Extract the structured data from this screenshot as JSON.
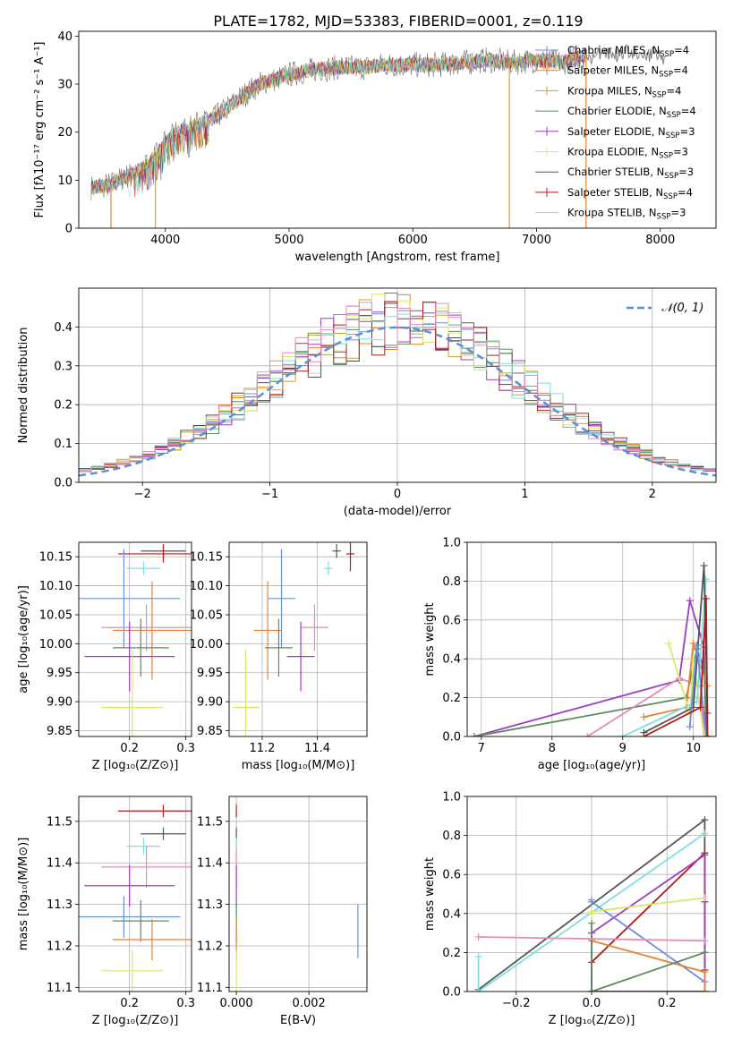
{
  "figure": {
    "title": "PLATE=1782, MJD=53383, FIBERID=0001, z=0.119"
  },
  "colors": {
    "chabrier_miles": "#6a8fe0",
    "salpeter_miles": "#e8822e",
    "kroupa_miles": "#c9a52e",
    "chabrier_elodie": "#5e8a5e",
    "salpeter_elodie": "#9a3fc4",
    "kroupa_elodie": "#d8e86a",
    "chabrier_stelib": "#555555",
    "salpeter_stelib": "#b01a1a",
    "kroupa_stelib": "#7fdde0",
    "pink": "#e68ab8",
    "normal": "#5b8fd6"
  },
  "chart_data": [
    {
      "id": "spectrum",
      "type": "line",
      "xlabel": "wavelength [Angstrom, rest frame]",
      "ylabel": "Flux [fλ10⁻¹⁷ erg cm⁻² s⁻¹ A⁻¹]",
      "xlim": [
        3300,
        8450
      ],
      "ylim": [
        0,
        41
      ],
      "xticks": [
        "4000",
        "5000",
        "6000",
        "7000",
        "8000"
      ],
      "yticks": [
        "0",
        "10",
        "20",
        "30",
        "40"
      ],
      "grid": false,
      "legend_position": "right",
      "continuum": {
        "x": [
          3400,
          3550,
          3700,
          3850,
          3950,
          4000,
          4100,
          4200,
          4300,
          4400,
          4500,
          4600,
          4700,
          4800,
          4900,
          5000,
          5200,
          5400,
          5600,
          5800,
          6000,
          6200,
          6400,
          6600,
          6800,
          7000,
          7200,
          7400
        ],
        "y": [
          8.5,
          9,
          11,
          13,
          16,
          18,
          20,
          21,
          22,
          23,
          25,
          27,
          29,
          30.5,
          31,
          32,
          33,
          33.5,
          33.5,
          34,
          34,
          34,
          34.5,
          35,
          34.5,
          35,
          34.5,
          36
        ]
      },
      "observed_tail": {
        "x": [
          7450,
          7550,
          7650,
          7750,
          7850,
          7950,
          8050
        ],
        "y": [
          35.5,
          37,
          36,
          37,
          35.5,
          36.5,
          35
        ]
      },
      "dropouts": [
        3560,
        3920,
        6780,
        7400
      ],
      "series": [
        {
          "name": "Chabrier MILES, N_SSP=4",
          "label_main": "Chabrier MILES, N",
          "label_sub": "SSP",
          "label_tail": "=4",
          "color": "#6a8fe0",
          "marker": "cross"
        },
        {
          "name": "Salpeter MILES, N_SSP=4",
          "label_main": "Salpeter MILES, N",
          "label_sub": "SSP",
          "label_tail": "=4",
          "color": "#e8822e",
          "marker": "cross"
        },
        {
          "name": "Kroupa MILES, N_SSP=4",
          "label_main": "Kroupa MILES, N",
          "label_sub": "SSP",
          "label_tail": "=4",
          "color": "#c9a52e",
          "marker": "cross"
        },
        {
          "name": "Chabrier ELODIE, N_SSP=4",
          "label_main": "Chabrier ELODIE, N",
          "label_sub": "SSP",
          "label_tail": "=4",
          "color": "#5e8a5e",
          "marker": "line"
        },
        {
          "name": "Salpeter ELODIE, N_SSP=3",
          "label_main": "Salpeter ELODIE, N",
          "label_sub": "SSP",
          "label_tail": "=3",
          "color": "#9a3fc4",
          "marker": "cross"
        },
        {
          "name": "Kroupa ELODIE, N_SSP=3",
          "label_main": "Kroupa ELODIE, N",
          "label_sub": "SSP",
          "label_tail": "=3",
          "color": "#d8e86a",
          "marker": "cross"
        },
        {
          "name": "Chabrier STELIB, N_SSP=3",
          "label_main": "Chabrier STELIB, N",
          "label_sub": "SSP",
          "label_tail": "=3",
          "color": "#555555",
          "marker": "line"
        },
        {
          "name": "Salpeter STELIB, N_SSP=4",
          "label_main": "Salpeter STELIB, N",
          "label_sub": "SSP",
          "label_tail": "=4",
          "color": "#b01a1a",
          "marker": "cross"
        },
        {
          "name": "Kroupa STELIB, N_SSP=3",
          "label_main": "Kroupa STELIB, N",
          "label_sub": "SSP",
          "label_tail": "=3",
          "color": "#7fdde0",
          "marker": "line"
        }
      ]
    },
    {
      "id": "residuals",
      "type": "line",
      "xlabel": "(data-model)/error",
      "ylabel": "Normed distribution",
      "xlim": [
        -2.5,
        2.5
      ],
      "ylim": [
        0,
        0.5
      ],
      "xticks": [
        "−2",
        "−1",
        "0",
        "1",
        "2"
      ],
      "yticks": [
        "0.0",
        "0.1",
        "0.2",
        "0.3",
        "0.4"
      ],
      "grid": true,
      "legend_position": "top-right",
      "legend_label": "𝒩(0, 1)",
      "bin_width": 0.1
    },
    {
      "id": "age_vs_z",
      "type": "scatter",
      "xlabel": "Z [log₁₀(Z/Z⊙)]",
      "ylabel": "age  [log₁₀(age/yr)]",
      "xlim": [
        0.11,
        0.31
      ],
      "ylim": [
        9.84,
        10.175
      ],
      "xticks": [
        "0.2",
        "0.3"
      ],
      "yticks": [
        "9.85",
        "9.90",
        "9.95",
        "10.00",
        "10.05",
        "10.10",
        "10.15"
      ],
      "grid": true,
      "points": [
        {
          "x": 0.26,
          "xerr": 0.04,
          "y": 10.16,
          "yerr": 0.012,
          "color": "#555555"
        },
        {
          "x": 0.26,
          "xerr": 0.08,
          "y": 10.155,
          "yerr": 0.015,
          "color": "#b01a1a"
        },
        {
          "x": 0.225,
          "xerr": 0.03,
          "y": 10.13,
          "yerr": 0.012,
          "color": "#7fdde0"
        },
        {
          "x": 0.19,
          "xerr": 0.1,
          "y": 10.078,
          "yerr": 0.085,
          "color": "#6a8fe0"
        },
        {
          "x": 0.24,
          "xerr": 0.07,
          "y": 10.023,
          "yerr": 0.085,
          "color": "#e8822e"
        },
        {
          "x": 0.23,
          "xerr": 0.08,
          "y": 10.028,
          "yerr": 0.04,
          "color": "#e68ab8"
        },
        {
          "x": 0.22,
          "xerr": 0.05,
          "y": 9.993,
          "yerr": 0.05,
          "color": "#5e8a5e"
        },
        {
          "x": 0.2,
          "xerr": 0.08,
          "y": 9.978,
          "yerr": 0.06,
          "color": "#9a3fc4"
        },
        {
          "x": 0.205,
          "xerr": 0.055,
          "y": 9.89,
          "yerr": 0.1,
          "color": "#d8e86a"
        }
      ]
    },
    {
      "id": "age_vs_mass",
      "type": "scatter",
      "xlabel": "mass [log₁₀(M/M⊙)]",
      "ylabel": "",
      "xlim": [
        11.08,
        11.58
      ],
      "ylim": [
        9.84,
        10.175
      ],
      "xticks": [
        "11.2",
        "11.4"
      ],
      "yticks": [
        "9.85",
        "9.90",
        "9.95",
        "10.00",
        "10.05",
        "10.10",
        "10.15"
      ],
      "grid": true,
      "points": [
        {
          "x": 11.47,
          "xerr": 0.015,
          "y": 10.16,
          "yerr": 0.012,
          "color": "#555555"
        },
        {
          "x": 11.52,
          "xerr": 0.015,
          "y": 10.155,
          "yerr": 0.03,
          "color": "#b01a1a"
        },
        {
          "x": 11.44,
          "xerr": 0.015,
          "y": 10.13,
          "yerr": 0.012,
          "color": "#7fdde0"
        },
        {
          "x": 11.27,
          "xerr": 0.05,
          "y": 10.078,
          "yerr": 0.085,
          "color": "#6a8fe0"
        },
        {
          "x": 11.22,
          "xerr": 0.05,
          "y": 10.023,
          "yerr": 0.085,
          "color": "#e8822e"
        },
        {
          "x": 11.39,
          "xerr": 0.05,
          "y": 10.028,
          "yerr": 0.04,
          "color": "#e68ab8"
        },
        {
          "x": 11.26,
          "xerr": 0.05,
          "y": 9.993,
          "yerr": 0.05,
          "color": "#5e8a5e"
        },
        {
          "x": 11.34,
          "xerr": 0.05,
          "y": 9.978,
          "yerr": 0.06,
          "color": "#9a3fc4"
        },
        {
          "x": 11.14,
          "xerr": 0.05,
          "y": 9.89,
          "yerr": 0.1,
          "color": "#d8e86a"
        }
      ]
    },
    {
      "id": "mass_weight_vs_age",
      "type": "line",
      "xlabel": "age  [log₁₀(age/yr)]",
      "ylabel": "mass weight",
      "xlim": [
        6.8,
        10.32
      ],
      "ylim": [
        0,
        1.0
      ],
      "xticks": [
        "7",
        "8",
        "9",
        "10"
      ],
      "yticks": [
        "0.0",
        "0.2",
        "0.4",
        "0.6",
        "0.8",
        "1.0"
      ],
      "grid": true,
      "series": [
        {
          "color": "#9a3fc4",
          "x": [
            6.9,
            9.8,
            9.95,
            10.15,
            10.18
          ],
          "y": [
            0.0,
            0.29,
            0.7,
            0.46,
            0.0
          ]
        },
        {
          "color": "#5e8a5e",
          "x": [
            6.9,
            9.9,
            10.05,
            10.15,
            10.2
          ],
          "y": [
            0.0,
            0.2,
            0.45,
            0.35,
            0.0
          ]
        },
        {
          "color": "#e68ab8",
          "x": [
            8.5,
            9.8,
            10.1,
            10.15
          ],
          "y": [
            0.0,
            0.3,
            0.26,
            0.0
          ]
        },
        {
          "color": "#e8822e",
          "x": [
            9.3,
            9.9,
            10.0,
            10.2
          ],
          "y": [
            0.1,
            0.15,
            0.48,
            0.26
          ]
        },
        {
          "color": "#d8e86a",
          "x": [
            9.65,
            9.95,
            10.0,
            10.15
          ],
          "y": [
            0.48,
            0.12,
            0.4,
            0.0
          ]
        },
        {
          "color": "#7fdde0",
          "x": [
            9.0,
            10.05,
            10.18
          ],
          "y": [
            0.0,
            0.18,
            0.81
          ]
        },
        {
          "color": "#555555",
          "x": [
            9.3,
            10.0,
            10.15,
            10.2
          ],
          "y": [
            0.02,
            0.15,
            0.88,
            0.12
          ]
        },
        {
          "color": "#6a8fe0",
          "x": [
            9.95,
            10.05,
            10.18
          ],
          "y": [
            0.05,
            0.47,
            0.0
          ]
        },
        {
          "color": "#b01a1a",
          "x": [
            9.3,
            10.1,
            10.18,
            10.2
          ],
          "y": [
            0.0,
            0.15,
            0.71,
            0.0
          ]
        }
      ]
    },
    {
      "id": "mass_vs_z",
      "type": "scatter",
      "xlabel": "Z [log₁₀(Z/Z⊙)]",
      "ylabel": "mass [log₁₀(M/M⊙)]",
      "xlim": [
        0.11,
        0.31
      ],
      "ylim": [
        11.09,
        11.56
      ],
      "xticks": [
        "0.2",
        "0.3"
      ],
      "yticks": [
        "11.1",
        "11.2",
        "11.3",
        "11.4",
        "11.5"
      ],
      "grid": true,
      "points": [
        {
          "x": 0.26,
          "xerr": 0.08,
          "y": 11.525,
          "yerr": 0.015,
          "color": "#b01a1a"
        },
        {
          "x": 0.26,
          "xerr": 0.04,
          "y": 11.47,
          "yerr": 0.015,
          "color": "#555555"
        },
        {
          "x": 0.225,
          "xerr": 0.03,
          "y": 11.44,
          "yerr": 0.02,
          "color": "#7fdde0"
        },
        {
          "x": 0.23,
          "xerr": 0.08,
          "y": 11.39,
          "yerr": 0.05,
          "color": "#e68ab8"
        },
        {
          "x": 0.2,
          "xerr": 0.08,
          "y": 11.345,
          "yerr": 0.05,
          "color": "#9a3fc4"
        },
        {
          "x": 0.19,
          "xerr": 0.1,
          "y": 11.27,
          "yerr": 0.05,
          "color": "#6a8fe0"
        },
        {
          "x": 0.22,
          "xerr": 0.05,
          "y": 11.26,
          "yerr": 0.05,
          "color": "#5e8a5e"
        },
        {
          "x": 0.24,
          "xerr": 0.07,
          "y": 11.215,
          "yerr": 0.05,
          "color": "#e8822e"
        },
        {
          "x": 0.205,
          "xerr": 0.055,
          "y": 11.14,
          "yerr": 0.05,
          "color": "#d8e86a"
        }
      ]
    },
    {
      "id": "mass_vs_ebv",
      "type": "scatter",
      "xlabel": "E(B-V)",
      "ylabel": "",
      "xlim": [
        -0.0002,
        0.0036
      ],
      "ylim": [
        11.09,
        11.56
      ],
      "xticks": [
        "0.000",
        "0.002"
      ],
      "yticks": [
        "11.1",
        "11.2",
        "11.3",
        "11.4",
        "11.5"
      ],
      "grid": true,
      "points": [
        {
          "x": 0.0,
          "xerr": 0.0,
          "y": 11.525,
          "yerr": 0.015,
          "color": "#b01a1a"
        },
        {
          "x": 0.0,
          "xerr": 0.0,
          "y": 11.47,
          "yerr": 0.015,
          "color": "#555555"
        },
        {
          "x": 0.0,
          "xerr": 0.0,
          "y": 11.44,
          "yerr": 0.02,
          "color": "#7fdde0"
        },
        {
          "x": 0.0,
          "xerr": 0.0,
          "y": 11.39,
          "yerr": 0.05,
          "color": "#e68ab8"
        },
        {
          "x": 0.0,
          "xerr": 0.0,
          "y": 11.345,
          "yerr": 0.05,
          "color": "#9a3fc4"
        },
        {
          "x": 0.0,
          "xerr": 0.0,
          "y": 11.26,
          "yerr": 0.05,
          "color": "#5e8a5e"
        },
        {
          "x": 0.0,
          "xerr": 0.0,
          "y": 11.215,
          "yerr": 0.05,
          "color": "#e8822e"
        },
        {
          "x": 0.0,
          "xerr": 0.0,
          "y": 11.14,
          "yerr": 0.05,
          "color": "#d8e86a"
        },
        {
          "x": 0.00335,
          "xerr": 0.0,
          "y": 11.235,
          "yerr": 0.065,
          "color": "#6a8fe0"
        }
      ]
    },
    {
      "id": "mass_weight_vs_z",
      "type": "line",
      "xlabel": "Z [log₁₀(Z/Z⊙)]",
      "ylabel": "mass weight",
      "xlim": [
        -0.33,
        0.33
      ],
      "ylim": [
        0,
        1.0
      ],
      "xticks": [
        "−0.2",
        "0.0",
        "0.2"
      ],
      "yticks": [
        "0.0",
        "0.2",
        "0.4",
        "0.6",
        "0.8",
        "1.0"
      ],
      "grid": true,
      "series": [
        {
          "color": "#555555",
          "x": [
            -0.3,
            0.3,
            0.3,
            0.3
          ],
          "y": [
            0.01,
            0.88,
            0.46,
            0.11
          ]
        },
        {
          "color": "#7fdde0",
          "x": [
            -0.3,
            -0.3,
            0.3
          ],
          "y": [
            0.18,
            0.0,
            0.81
          ]
        },
        {
          "color": "#b01a1a",
          "x": [
            0.0,
            0.0,
            0.3,
            0.3,
            0.0
          ],
          "y": [
            0.0,
            0.15,
            0.71,
            0.0,
            0.0
          ]
        },
        {
          "color": "#9a3fc4",
          "x": [
            0.0,
            0.0,
            0.3,
            0.3
          ],
          "y": [
            0.0,
            0.3,
            0.7,
            0.0
          ]
        },
        {
          "color": "#6a8fe0",
          "x": [
            0.0,
            0.0,
            0.3
          ],
          "y": [
            0.47,
            0.46,
            0.05
          ]
        },
        {
          "color": "#d8e86a",
          "x": [
            0.0,
            0.0,
            0.3
          ],
          "y": [
            0.4,
            0.41,
            0.48
          ]
        },
        {
          "color": "#e8822e",
          "x": [
            0.0,
            0.0,
            0.3,
            0.3
          ],
          "y": [
            0.26,
            0.26,
            0.1,
            0.0
          ]
        },
        {
          "color": "#5e8a5e",
          "x": [
            0.0,
            0.0,
            0.3,
            0.3
          ],
          "y": [
            0.35,
            0.0,
            0.2,
            0.2
          ]
        },
        {
          "color": "#e68ab8",
          "x": [
            -0.3,
            0.3
          ],
          "y": [
            0.28,
            0.26
          ]
        }
      ]
    }
  ]
}
